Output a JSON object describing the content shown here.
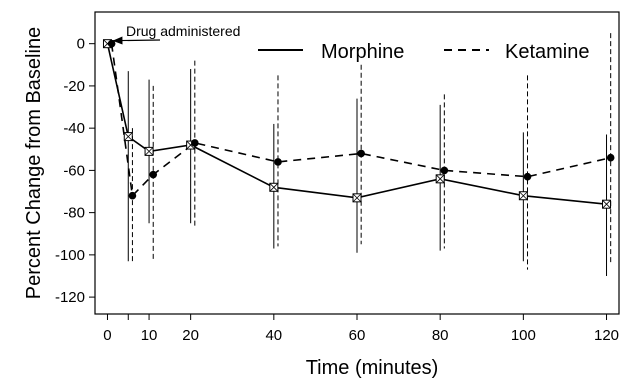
{
  "chart_data": {
    "type": "line",
    "xlabel": "Time (minutes)",
    "ylabel": "Percent Change from Baseline",
    "xlim": [
      -3,
      123
    ],
    "ylim": [
      -128,
      15
    ],
    "x_ticks": [
      0,
      5,
      10,
      20,
      40,
      60,
      80,
      100,
      120
    ],
    "x_tick_labels": [
      "0",
      "",
      "10",
      "20",
      "40",
      "60",
      "80",
      "100",
      "120"
    ],
    "y_ticks": [
      0,
      -20,
      -40,
      -60,
      -80,
      -100,
      -120
    ],
    "y_tick_labels": [
      "0",
      "-20",
      "-40",
      "-60",
      "-80",
      "-100",
      "-120"
    ],
    "grid": false,
    "legend_position": "top-right",
    "annotation": {
      "text": "Drug administered",
      "target": {
        "x": 0,
        "y": 0
      }
    },
    "series": [
      {
        "name": "Morphine",
        "line_style": "solid",
        "marker": "square-x",
        "points": [
          {
            "x": 0,
            "y": 0,
            "low": 0,
            "high": 0
          },
          {
            "x": 5,
            "y": -44,
            "low": -103,
            "high": -13
          },
          {
            "x": 10,
            "y": -51,
            "low": -85,
            "high": -17
          },
          {
            "x": 20,
            "y": -48,
            "low": -85,
            "high": -12
          },
          {
            "x": 40,
            "y": -68,
            "low": -97,
            "high": -38
          },
          {
            "x": 60,
            "y": -73,
            "low": -99,
            "high": -26
          },
          {
            "x": 80,
            "y": -64,
            "low": -98,
            "high": -29
          },
          {
            "x": 100,
            "y": -72,
            "low": -103,
            "high": -42
          },
          {
            "x": 120,
            "y": -76,
            "low": -110,
            "high": -43
          }
        ]
      },
      {
        "name": "Ketamine",
        "line_style": "dashed",
        "marker": "filled-circle",
        "points": [
          {
            "x": 1,
            "y": 0,
            "low": 0,
            "high": 0
          },
          {
            "x": 6,
            "y": -72,
            "low": -104,
            "high": -40
          },
          {
            "x": 11,
            "y": -62,
            "low": -103,
            "high": -20
          },
          {
            "x": 21,
            "y": -47,
            "low": -87,
            "high": -8
          },
          {
            "x": 41,
            "y": -56,
            "low": -96,
            "high": -15
          },
          {
            "x": 61,
            "y": -52,
            "low": -95,
            "high": -10
          },
          {
            "x": 81,
            "y": -60,
            "low": -97,
            "high": -24
          },
          {
            "x": 101,
            "y": -63,
            "low": -107,
            "high": -15
          },
          {
            "x": 121,
            "y": -54,
            "low": -104,
            "high": 5
          }
        ]
      }
    ]
  }
}
